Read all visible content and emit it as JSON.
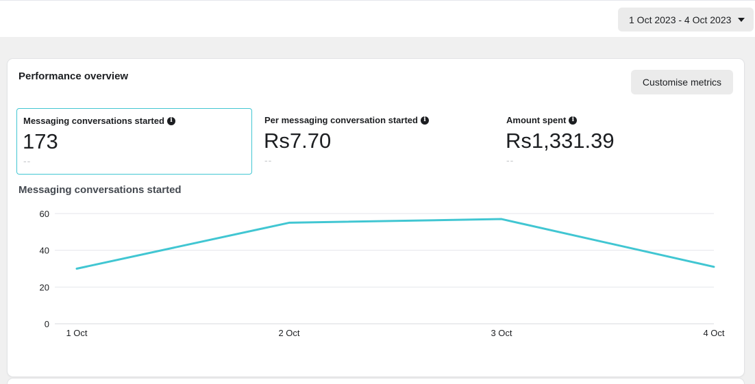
{
  "header": {
    "date_range": "1 Oct 2023 - 4 Oct 2023"
  },
  "overview": {
    "title": "Performance overview",
    "customise_label": "Customise metrics",
    "metrics": [
      {
        "label": "Messaging conversations started",
        "value": "173",
        "sub": "--",
        "selected": true
      },
      {
        "label": "Per messaging conversation started",
        "value": "Rs7.70",
        "sub": "--",
        "selected": false
      },
      {
        "label": "Amount spent",
        "value": "Rs1,331.39",
        "sub": "--",
        "selected": false
      }
    ],
    "info_icon": "info-icon"
  },
  "chart_title": "Messaging conversations started",
  "colors": {
    "line": "#41c6d2",
    "selected_border": "#41c6d2",
    "grid": "#e4e6eb"
  },
  "chart_data": {
    "type": "line",
    "categories": [
      "1 Oct",
      "2 Oct",
      "3 Oct",
      "4 Oct"
    ],
    "series": [
      {
        "values": [
          30,
          55,
          57,
          31
        ]
      }
    ],
    "title": "Messaging conversations started",
    "xlabel": "",
    "ylabel": "",
    "ylim": [
      0,
      60
    ],
    "yticks": [
      0,
      20,
      40,
      60
    ],
    "grid": true
  }
}
